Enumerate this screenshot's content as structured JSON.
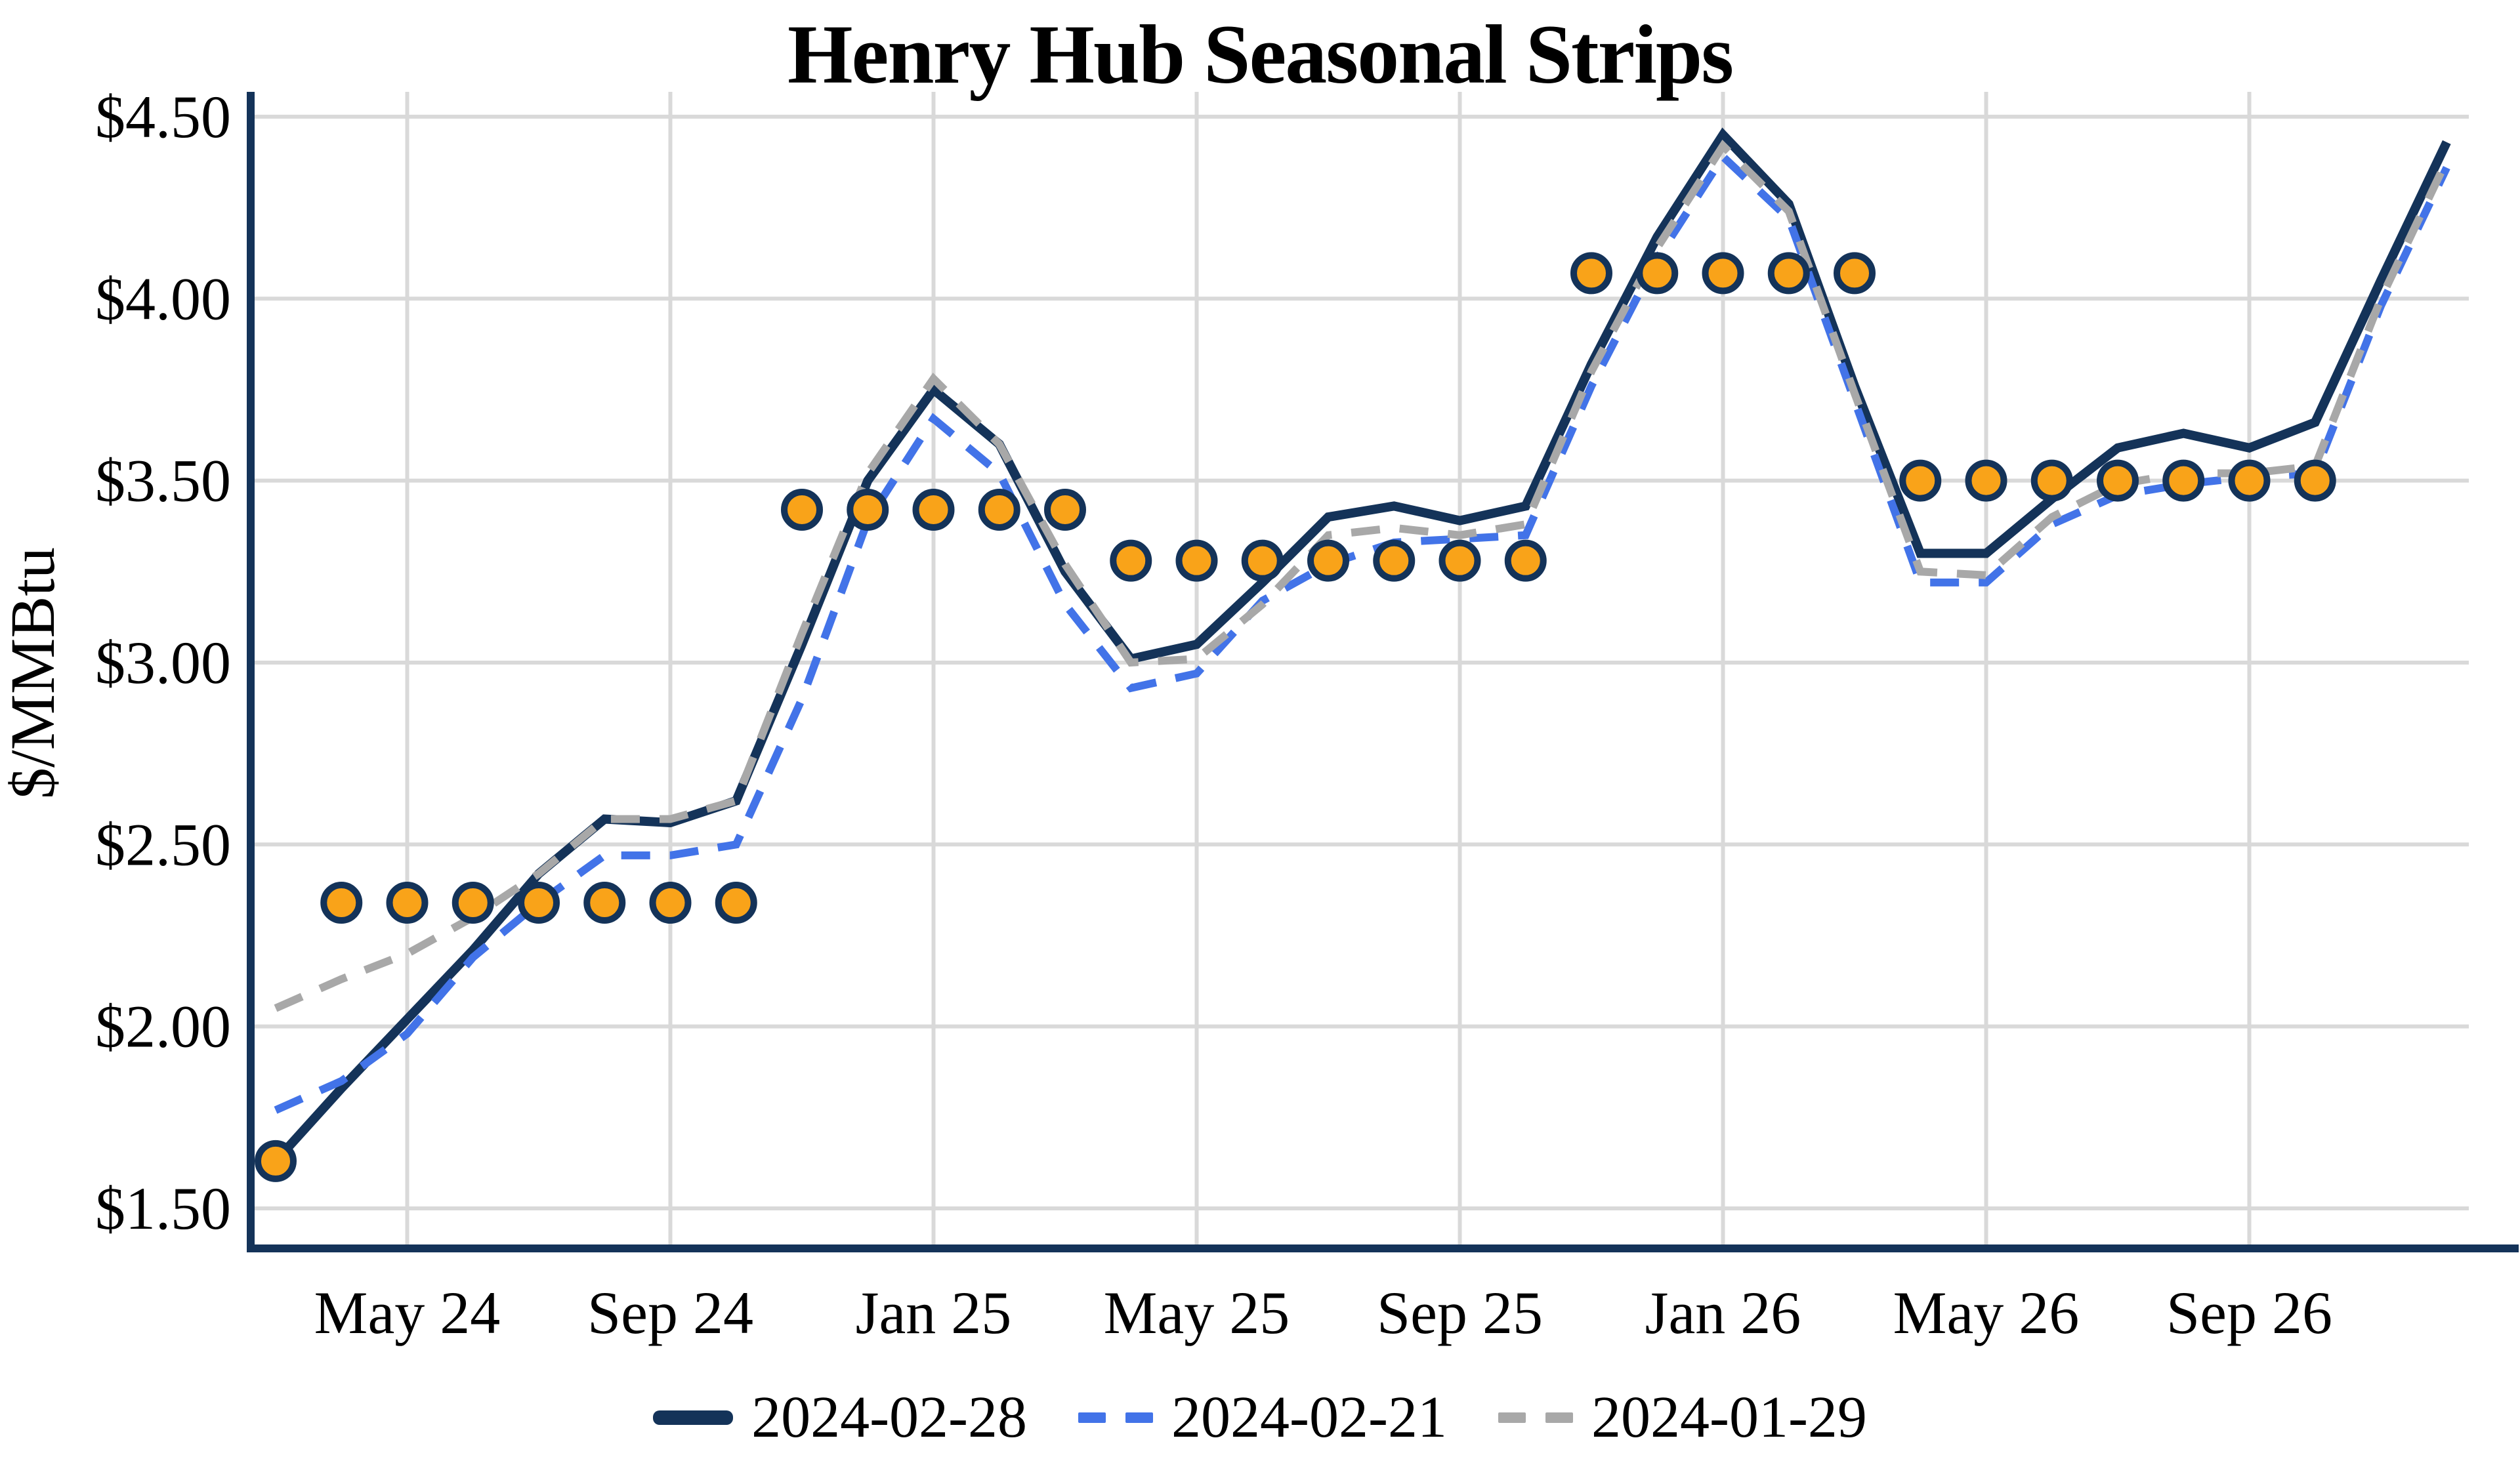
{
  "chart_data": {
    "type": "line",
    "title": "Henry Hub Seasonal Strips",
    "ylabel": "$/MMBtu",
    "x_unit": "month",
    "categories": [
      "Mar 24",
      "Apr 24",
      "May 24",
      "Jun 24",
      "Jul 24",
      "Aug 24",
      "Sep 24",
      "Oct 24",
      "Nov 24",
      "Dec 24",
      "Jan 25",
      "Feb 25",
      "Mar 25",
      "Apr 25",
      "May 25",
      "Jun 25",
      "Jul 25",
      "Aug 25",
      "Sep 25",
      "Oct 25",
      "Nov 25",
      "Dec 25",
      "Jan 26",
      "Feb 26",
      "Mar 26",
      "Apr 26",
      "May 26",
      "Jun 26",
      "Jul 26",
      "Aug 26",
      "Sep 26",
      "Oct 26",
      "Nov 26",
      "Dec 26"
    ],
    "xtick_labels": [
      "May 24",
      "Sep 24",
      "Jan 25",
      "May 25",
      "Sep 25",
      "Jan 26",
      "May 26",
      "Sep 26"
    ],
    "xtick_indices": [
      2,
      6,
      10,
      14,
      18,
      22,
      26,
      30
    ],
    "ytick_labels": [
      "$1.50",
      "$2.00",
      "$2.50",
      "$3.00",
      "$3.50",
      "$4.00",
      "$4.50"
    ],
    "yticks": [
      1.5,
      2.0,
      2.5,
      3.0,
      3.5,
      4.0,
      4.5
    ],
    "ylim": [
      1.39,
      4.57
    ],
    "grid": true,
    "grid_color": "#D9D9D9",
    "axis_color": "#143359",
    "legend_position": "bottom",
    "series": [
      {
        "name": "2024-02-28",
        "style": "solid",
        "color": "#143359",
        "values": [
          1.63,
          1.83,
          2.02,
          2.21,
          2.42,
          2.57,
          2.56,
          2.62,
          3.05,
          3.5,
          3.75,
          3.6,
          3.25,
          3.01,
          3.05,
          3.22,
          3.4,
          3.43,
          3.39,
          3.43,
          3.82,
          4.17,
          4.45,
          4.26,
          3.76,
          3.3,
          3.3,
          3.45,
          3.59,
          3.63,
          3.59,
          3.66,
          4.05,
          4.43
        ]
      },
      {
        "name": "2024-02-21",
        "style": "dashed",
        "color": "#4273E8",
        "values": [
          1.77,
          1.85,
          1.98,
          2.19,
          2.34,
          2.47,
          2.47,
          2.5,
          2.9,
          3.39,
          3.67,
          3.52,
          3.16,
          2.93,
          2.97,
          3.17,
          3.27,
          3.33,
          3.34,
          3.35,
          3.76,
          4.11,
          4.39,
          4.22,
          3.72,
          3.22,
          3.22,
          3.38,
          3.46,
          3.49,
          3.51,
          3.52,
          3.98,
          4.36
        ]
      },
      {
        "name": "2024-01-29",
        "style": "dashed",
        "color": "#A8A8A8",
        "values": [
          2.05,
          2.13,
          2.2,
          2.3,
          2.42,
          2.57,
          2.57,
          2.62,
          3.08,
          3.52,
          3.78,
          3.6,
          3.27,
          3.0,
          3.01,
          3.16,
          3.35,
          3.37,
          3.35,
          3.38,
          3.8,
          4.14,
          4.42,
          4.24,
          3.74,
          3.25,
          3.24,
          3.4,
          3.49,
          3.52,
          3.52,
          3.54,
          4.0,
          4.38
        ]
      }
    ],
    "markers": {
      "name": "seasonal-strip-average-dots",
      "fill_color": "#F9A319",
      "edge_color": "#143359",
      "points": [
        {
          "i": 0,
          "v": 1.63
        },
        {
          "i": 1,
          "v": 2.34
        },
        {
          "i": 2,
          "v": 2.34
        },
        {
          "i": 3,
          "v": 2.34
        },
        {
          "i": 4,
          "v": 2.34
        },
        {
          "i": 5,
          "v": 2.34
        },
        {
          "i": 6,
          "v": 2.34
        },
        {
          "i": 7,
          "v": 2.34
        },
        {
          "i": 8,
          "v": 3.42
        },
        {
          "i": 9,
          "v": 3.42
        },
        {
          "i": 10,
          "v": 3.42
        },
        {
          "i": 11,
          "v": 3.42
        },
        {
          "i": 12,
          "v": 3.42
        },
        {
          "i": 13,
          "v": 3.28
        },
        {
          "i": 14,
          "v": 3.28
        },
        {
          "i": 15,
          "v": 3.28
        },
        {
          "i": 16,
          "v": 3.28
        },
        {
          "i": 17,
          "v": 3.28
        },
        {
          "i": 18,
          "v": 3.28
        },
        {
          "i": 19,
          "v": 3.28
        },
        {
          "i": 20,
          "v": 4.07
        },
        {
          "i": 21,
          "v": 4.07
        },
        {
          "i": 22,
          "v": 4.07
        },
        {
          "i": 23,
          "v": 4.07
        },
        {
          "i": 24,
          "v": 4.07
        },
        {
          "i": 25,
          "v": 3.5
        },
        {
          "i": 26,
          "v": 3.5
        },
        {
          "i": 27,
          "v": 3.5
        },
        {
          "i": 28,
          "v": 3.5
        },
        {
          "i": 29,
          "v": 3.5
        },
        {
          "i": 30,
          "v": 3.5
        },
        {
          "i": 31,
          "v": 3.5
        }
      ]
    }
  }
}
